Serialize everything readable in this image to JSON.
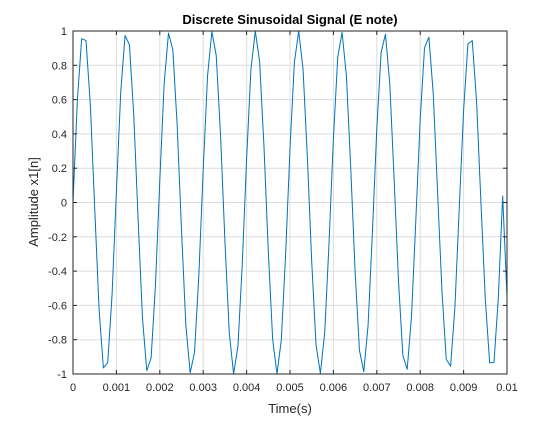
{
  "chart_data": {
    "type": "line",
    "title": "Discrete Sinusoidal Signal (E note)",
    "xlabel": "Time(s)",
    "ylabel": "Amplitude x1[n]",
    "xlim": [
      0,
      0.01
    ],
    "ylim": [
      -1,
      1
    ],
    "grid": true,
    "xtick_labels": [
      "0",
      "0.001",
      "0.002",
      "0.003",
      "0.004",
      "0.005",
      "0.006",
      "0.007",
      "0.008",
      "0.009",
      "0.01"
    ],
    "xtick_values": [
      0,
      0.001,
      0.002,
      0.003,
      0.004,
      0.005,
      0.006,
      0.007,
      0.008,
      0.009,
      0.01
    ],
    "ytick_labels": [
      "-1",
      "-0.8",
      "-0.6",
      "-0.4",
      "-0.2",
      "0",
      "0.2",
      "0.4",
      "0.6",
      "0.8",
      "1"
    ],
    "ytick_values": [
      -1,
      -0.8,
      -0.6,
      -0.4,
      -0.2,
      0,
      0.2,
      0.4,
      0.6,
      0.8,
      1
    ],
    "series": [
      {
        "color": "#0072bd",
        "x": [
          0,
          0.0001,
          0.0002,
          0.0003,
          0.0004,
          0.0005,
          0.0006,
          0.0007,
          0.0008,
          0.0009,
          0.001,
          0.0011,
          0.0012,
          0.0013,
          0.0014,
          0.0015,
          0.0016,
          0.0017,
          0.0018,
          0.0019,
          0.002,
          0.0021,
          0.0022,
          0.0023,
          0.0024,
          0.0025,
          0.0026,
          0.0027,
          0.0028,
          0.0029,
          0.003,
          0.0031,
          0.0032,
          0.0033,
          0.0034,
          0.0035,
          0.0036,
          0.0037,
          0.0038,
          0.0039,
          0.004,
          0.0041,
          0.0042,
          0.0043,
          0.0044,
          0.0045,
          0.0046,
          0.0047,
          0.0048,
          0.0049,
          0.005,
          0.0051,
          0.0052,
          0.0053,
          0.0054,
          0.0055,
          0.0056,
          0.0057,
          0.0058,
          0.0059,
          0.006,
          0.0061,
          0.0062,
          0.0063,
          0.0064,
          0.0065,
          0.0066,
          0.0067,
          0.0068,
          0.0069,
          0.007,
          0.0071,
          0.0072,
          0.0073,
          0.0074,
          0.0075,
          0.0076,
          0.0077,
          0.0078,
          0.0079,
          0.008,
          0.0081,
          0.0082,
          0.0083,
          0.0084,
          0.0085,
          0.0086,
          0.0087,
          0.0088,
          0.0089,
          0.009,
          0.0091,
          0.0092,
          0.0093,
          0.0094,
          0.0095,
          0.0096,
          0.0097,
          0.0098,
          0.0099,
          0.01
        ],
        "y": [
          0,
          0.594,
          0.955,
          0.944,
          0.567,
          -0.032,
          -0.62,
          -0.965,
          -0.933,
          -0.539,
          0.064,
          0.645,
          0.974,
          0.92,
          0.511,
          -0.096,
          -0.67,
          -0.981,
          -0.906,
          -0.482,
          0.128,
          0.693,
          0.988,
          0.891,
          0.452,
          -0.16,
          -0.715,
          -0.993,
          -0.875,
          -0.422,
          0.191,
          0.737,
          0.997,
          0.858,
          0.392,
          -0.222,
          -0.758,
          -0.999,
          -0.84,
          -0.361,
          0.253,
          0.777,
          1.0,
          0.821,
          0.329,
          -0.284,
          -0.796,
          -1.0,
          -0.801,
          -0.297,
          0.314,
          0.814,
          0.999,
          0.781,
          0.265,
          -0.344,
          -0.831,
          -0.996,
          -0.759,
          -0.232,
          0.373,
          0.847,
          0.992,
          0.737,
          0.199,
          -0.402,
          -0.862,
          -0.987,
          -0.713,
          -0.166,
          0.43,
          0.877,
          0.981,
          0.689,
          0.132,
          -0.458,
          -0.89,
          -0.973,
          -0.664,
          -0.098,
          0.485,
          0.903,
          0.964,
          0.638,
          0.064,
          -0.511,
          -0.914,
          -0.955,
          -0.611,
          -0.03,
          0.537,
          0.925,
          0.944,
          0.584,
          -0.004,
          -0.562,
          -0.935,
          -0.932,
          -0.556,
          0.038,
          -0.547
        ]
      }
    ]
  }
}
